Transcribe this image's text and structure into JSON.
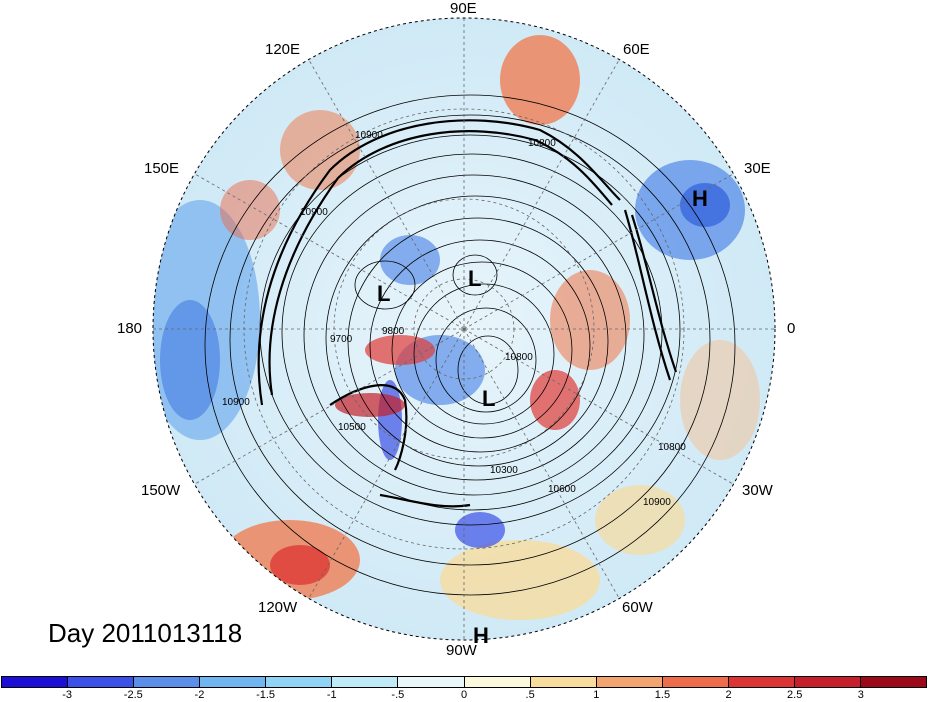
{
  "title": "Day 2011013118",
  "longitude_labels": {
    "lon_90e": "90E",
    "lon_60e": "60E",
    "lon_30e": "30E",
    "lon_0": "0",
    "lon_30w": "30W",
    "lon_60w": "60W",
    "lon_90w": "90W",
    "lon_120w": "120W",
    "lon_150w": "150W",
    "lon_180": "180",
    "lon_150e": "150E",
    "lon_120e": "120E"
  },
  "contour_labels": [
    "10900",
    "10800",
    "10600",
    "10500",
    "10300",
    "9800",
    "9700",
    "10800",
    "10900",
    "10900",
    "10800",
    "10900"
  ],
  "pressure_centers": [
    {
      "symbol": "H",
      "name": "high-east"
    },
    {
      "symbol": "L",
      "name": "low-north"
    },
    {
      "symbol": "L",
      "name": "low-west"
    },
    {
      "symbol": "L",
      "name": "low-center"
    },
    {
      "symbol": "H",
      "name": "high-south"
    }
  ],
  "colorbar": {
    "labels": [
      "-3",
      "-2.5",
      "-2",
      "-1.5",
      "-1",
      "-.5",
      "0",
      ".5",
      "1",
      "1.5",
      "2",
      "2.5",
      "3"
    ],
    "colors": [
      "#1b0fd6",
      "#3a50e6",
      "#5a8ee8",
      "#6fb6f0",
      "#8fd4f4",
      "#bfeaf8",
      "#e9f7fb",
      "#fbf8dc",
      "#f7dc9e",
      "#f3a570",
      "#ec6c4c",
      "#dc3434",
      "#c41f2a",
      "#9c0a1a"
    ]
  },
  "map_colors": {
    "ocean_background": "#d8eef8",
    "cold_anomaly": "#5a8ee8",
    "warm_anomaly": "#ec6c4c"
  }
}
